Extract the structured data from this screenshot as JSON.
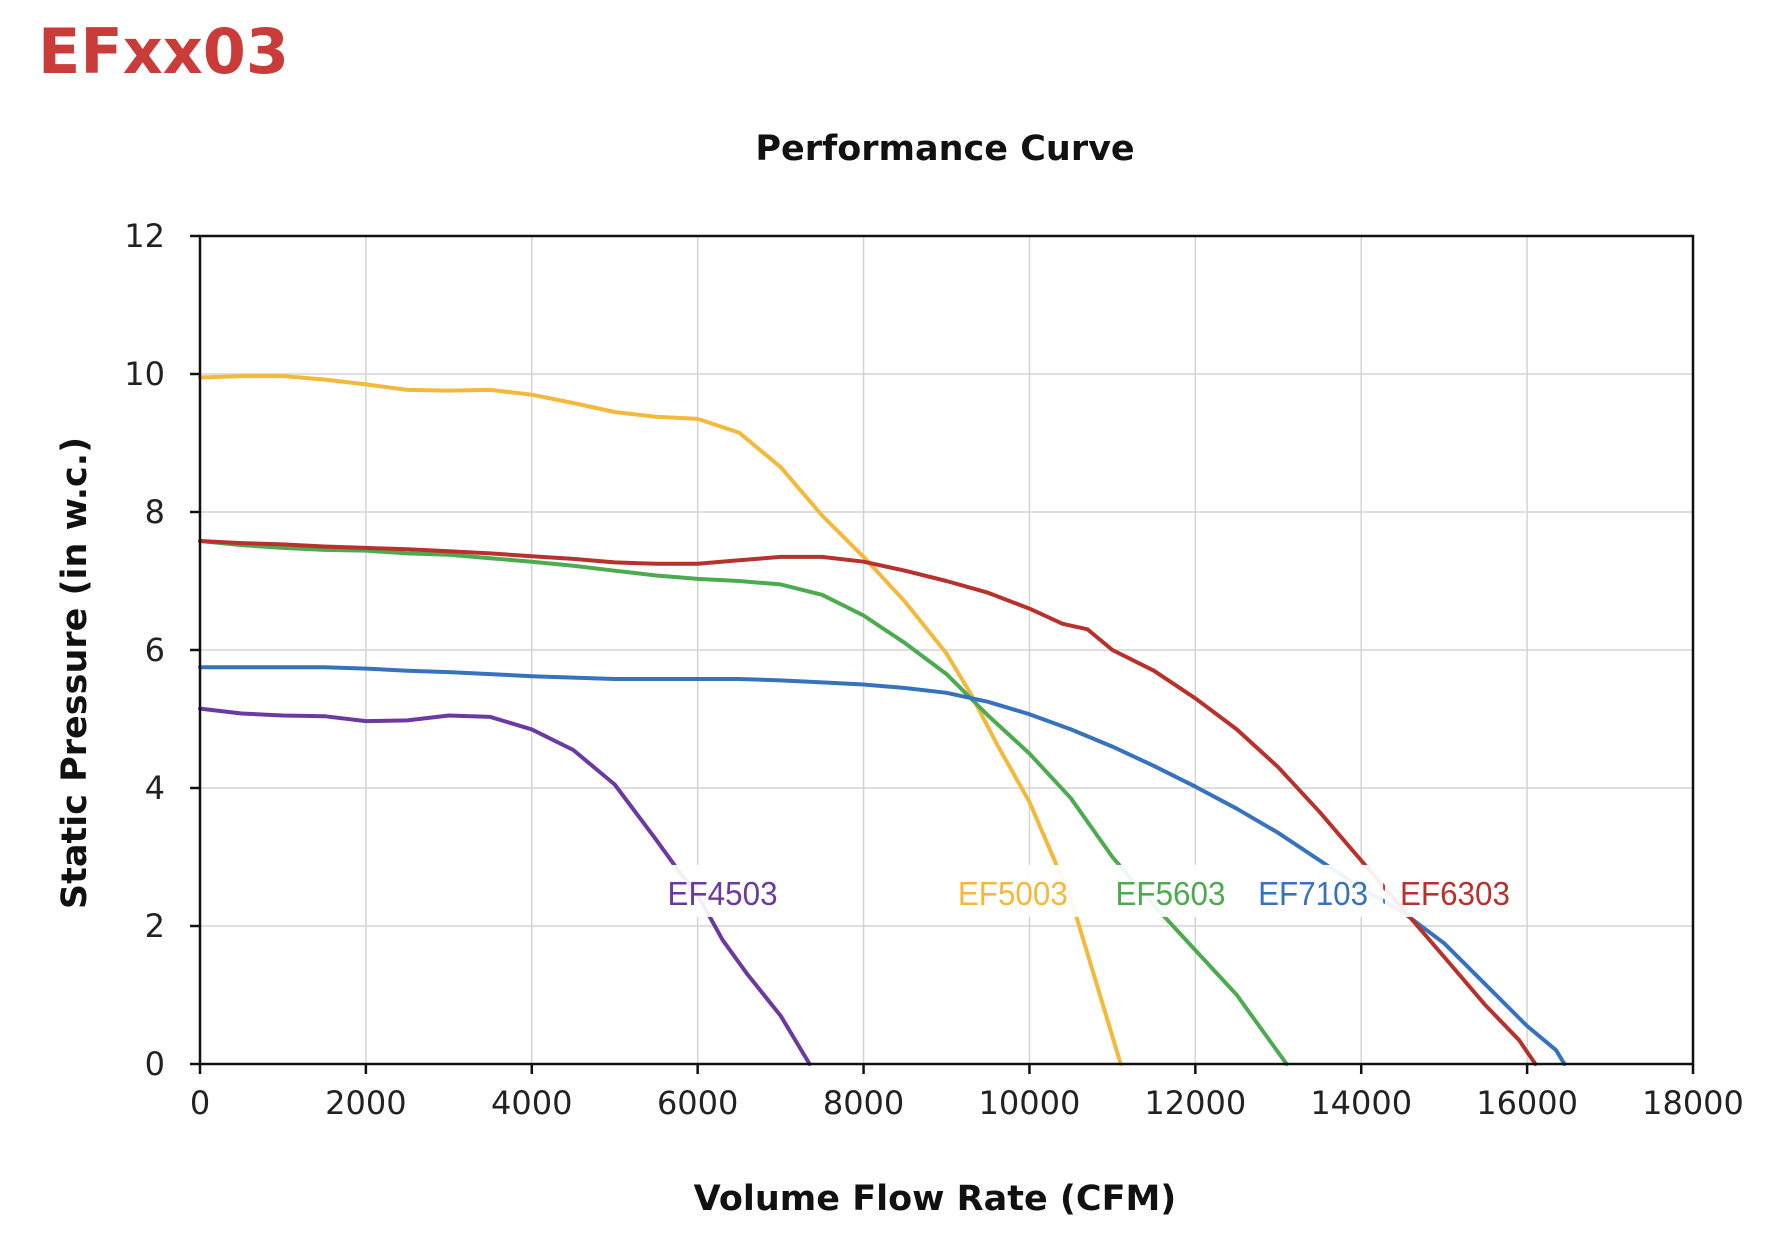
{
  "heading": "EFxx03",
  "chart_data": {
    "type": "line",
    "title": "Performance Curve",
    "xlabel": "Volume Flow Rate (CFM)",
    "ylabel": "Static Pressure (in w.c.)",
    "xlim": [
      0,
      18000
    ],
    "ylim": [
      0,
      12
    ],
    "x_ticks": [
      "0",
      "2000",
      "4000",
      "6000",
      "8000",
      "10000",
      "12000",
      "14000",
      "16000",
      "18000"
    ],
    "y_ticks": [
      "0",
      "2",
      "4",
      "6",
      "8",
      "10",
      "12"
    ],
    "grid": true,
    "legend": "inline labels near bottom",
    "series": [
      {
        "name": "EF4503",
        "color": "#6b3aa0",
        "points": [
          [
            0,
            5.15
          ],
          [
            500,
            5.08
          ],
          [
            1000,
            5.05
          ],
          [
            1500,
            5.04
          ],
          [
            2000,
            4.97
          ],
          [
            2500,
            4.98
          ],
          [
            3000,
            5.05
          ],
          [
            3500,
            5.03
          ],
          [
            4000,
            4.85
          ],
          [
            4500,
            4.55
          ],
          [
            5000,
            4.05
          ],
          [
            5500,
            3.25
          ],
          [
            5800,
            2.75
          ],
          [
            6000,
            2.45
          ],
          [
            6300,
            1.8
          ],
          [
            6600,
            1.3
          ],
          [
            7000,
            0.7
          ],
          [
            7350,
            0.0
          ]
        ]
      },
      {
        "name": "EF5003",
        "color": "#f4b83a",
        "points": [
          [
            0,
            9.95
          ],
          [
            500,
            9.97
          ],
          [
            1000,
            9.97
          ],
          [
            1500,
            9.92
          ],
          [
            2000,
            9.85
          ],
          [
            2500,
            9.77
          ],
          [
            3000,
            9.76
          ],
          [
            3500,
            9.77
          ],
          [
            4000,
            9.7
          ],
          [
            4500,
            9.58
          ],
          [
            5000,
            9.45
          ],
          [
            5500,
            9.38
          ],
          [
            6000,
            9.35
          ],
          [
            6500,
            9.15
          ],
          [
            7000,
            8.65
          ],
          [
            7500,
            7.95
          ],
          [
            8000,
            7.35
          ],
          [
            8500,
            6.7
          ],
          [
            9000,
            5.95
          ],
          [
            9300,
            5.35
          ],
          [
            9600,
            4.65
          ],
          [
            10000,
            3.8
          ],
          [
            10500,
            2.4
          ],
          [
            11100,
            0.0
          ]
        ]
      },
      {
        "name": "EF5603",
        "color": "#4caa4f",
        "points": [
          [
            0,
            7.58
          ],
          [
            500,
            7.52
          ],
          [
            1000,
            7.48
          ],
          [
            1500,
            7.45
          ],
          [
            2000,
            7.44
          ],
          [
            2500,
            7.4
          ],
          [
            3000,
            7.38
          ],
          [
            3500,
            7.33
          ],
          [
            4000,
            7.28
          ],
          [
            4500,
            7.22
          ],
          [
            5000,
            7.15
          ],
          [
            5500,
            7.08
          ],
          [
            6000,
            7.03
          ],
          [
            6500,
            7.0
          ],
          [
            7000,
            6.95
          ],
          [
            7500,
            6.8
          ],
          [
            8000,
            6.5
          ],
          [
            8500,
            6.1
          ],
          [
            9000,
            5.65
          ],
          [
            9500,
            5.05
          ],
          [
            10000,
            4.5
          ],
          [
            10500,
            3.85
          ],
          [
            11000,
            3.0
          ],
          [
            11500,
            2.3
          ],
          [
            12000,
            1.65
          ],
          [
            12500,
            1.0
          ],
          [
            13100,
            0.0
          ]
        ]
      },
      {
        "name": "EF7103",
        "color": "#3673bc",
        "points": [
          [
            0,
            5.75
          ],
          [
            500,
            5.75
          ],
          [
            1000,
            5.75
          ],
          [
            1500,
            5.75
          ],
          [
            2000,
            5.73
          ],
          [
            2500,
            5.7
          ],
          [
            3000,
            5.68
          ],
          [
            3500,
            5.65
          ],
          [
            4000,
            5.62
          ],
          [
            4500,
            5.6
          ],
          [
            5000,
            5.58
          ],
          [
            5500,
            5.58
          ],
          [
            6000,
            5.58
          ],
          [
            6500,
            5.58
          ],
          [
            7000,
            5.56
          ],
          [
            7500,
            5.53
          ],
          [
            8000,
            5.5
          ],
          [
            8500,
            5.45
          ],
          [
            9000,
            5.38
          ],
          [
            9500,
            5.25
          ],
          [
            10000,
            5.07
          ],
          [
            10500,
            4.85
          ],
          [
            11000,
            4.6
          ],
          [
            11500,
            4.32
          ],
          [
            12000,
            4.02
          ],
          [
            12500,
            3.7
          ],
          [
            13000,
            3.35
          ],
          [
            13500,
            2.95
          ],
          [
            14000,
            2.55
          ],
          [
            14500,
            2.2
          ],
          [
            15000,
            1.75
          ],
          [
            15500,
            1.15
          ],
          [
            16000,
            0.55
          ],
          [
            16350,
            0.2
          ],
          [
            16450,
            0.0
          ]
        ]
      },
      {
        "name": "EF6303",
        "color": "#b8312c",
        "points": [
          [
            0,
            7.58
          ],
          [
            500,
            7.55
          ],
          [
            1000,
            7.53
          ],
          [
            1500,
            7.5
          ],
          [
            2000,
            7.48
          ],
          [
            2500,
            7.46
          ],
          [
            3000,
            7.43
          ],
          [
            3500,
            7.4
          ],
          [
            4000,
            7.36
          ],
          [
            4500,
            7.32
          ],
          [
            5000,
            7.27
          ],
          [
            5500,
            7.25
          ],
          [
            6000,
            7.25
          ],
          [
            6500,
            7.3
          ],
          [
            7000,
            7.35
          ],
          [
            7500,
            7.35
          ],
          [
            8000,
            7.28
          ],
          [
            8500,
            7.15
          ],
          [
            9000,
            7.0
          ],
          [
            9500,
            6.83
          ],
          [
            10000,
            6.6
          ],
          [
            10400,
            6.38
          ],
          [
            10700,
            6.3
          ],
          [
            11000,
            6.0
          ],
          [
            11500,
            5.7
          ],
          [
            12000,
            5.3
          ],
          [
            12500,
            4.85
          ],
          [
            13000,
            4.3
          ],
          [
            13500,
            3.65
          ],
          [
            14000,
            2.95
          ],
          [
            14500,
            2.25
          ],
          [
            15000,
            1.55
          ],
          [
            15500,
            0.85
          ],
          [
            15900,
            0.35
          ],
          [
            16100,
            0.0
          ]
        ]
      }
    ],
    "labels": [
      {
        "series": "EF4503",
        "text": "EF4503",
        "x": 6300,
        "y": 2.45
      },
      {
        "series": "EF5003",
        "text": "EF5003",
        "x": 9800,
        "y": 2.45
      },
      {
        "series": "EF5603",
        "text": "EF5603",
        "x": 11700,
        "y": 2.45
      },
      {
        "series": "EF7103",
        "text": "EF7103",
        "x": 13420,
        "y": 2.45
      },
      {
        "series": "EF6303",
        "text": "EF6303",
        "x": 15130,
        "y": 2.45
      }
    ]
  }
}
